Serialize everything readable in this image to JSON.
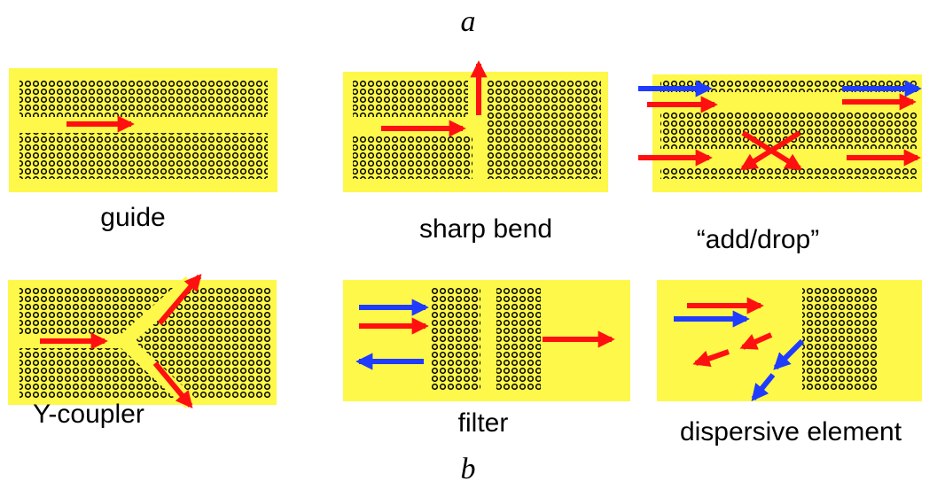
{
  "figure_labels": {
    "top": "a",
    "bottom": "b"
  },
  "panels": [
    {
      "label": "guide"
    },
    {
      "label": "sharp bend"
    },
    {
      "label": "“add/drop”"
    },
    {
      "label": "Y-coupler"
    },
    {
      "label": "filter"
    },
    {
      "label": "dispersive element"
    }
  ]
}
